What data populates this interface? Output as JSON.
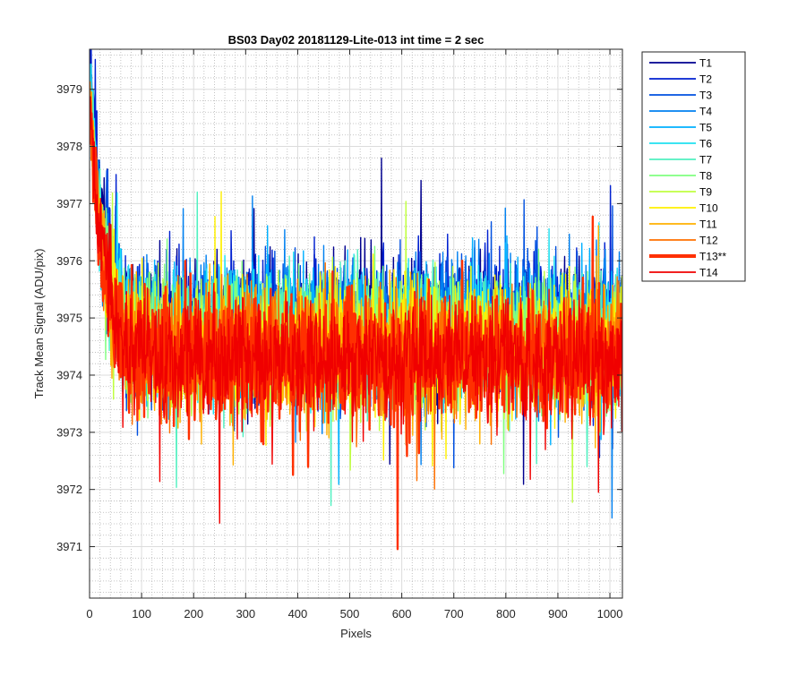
{
  "chart_data": {
    "type": "line",
    "title": "BS03 Day02 20181129-Lite-013 int time = 2 sec",
    "xlabel": "Pixels",
    "ylabel": "Track Mean Signal (ADU/pix)",
    "xlim": [
      0,
      1024
    ],
    "ylim": [
      3970.1,
      3979.7
    ],
    "xticks": [
      0,
      100,
      200,
      300,
      400,
      500,
      600,
      700,
      800,
      900,
      1000
    ],
    "yticks": [
      3971,
      3972,
      3973,
      3974,
      3975,
      3976,
      3977,
      3978,
      3979
    ],
    "grid": "major and minor",
    "legend_position": "outside-top-right",
    "series": [
      {
        "name": "T1",
        "color": "#00008F",
        "mean": 3974.9,
        "spread": 1.25,
        "start": 3979.6,
        "highlight": false
      },
      {
        "name": "T2",
        "color": "#0020D0",
        "mean": 3974.9,
        "spread": 1.25,
        "start": 3979.4,
        "highlight": false
      },
      {
        "name": "T3",
        "color": "#0050E0",
        "mean": 3974.8,
        "spread": 1.25,
        "start": 3979.2,
        "highlight": false
      },
      {
        "name": "T4",
        "color": "#0080F0",
        "mean": 3974.8,
        "spread": 1.25,
        "start": 3979.0,
        "highlight": false
      },
      {
        "name": "T5",
        "color": "#00B0FF",
        "mean": 3974.7,
        "spread": 1.2,
        "start": 3979.0,
        "highlight": false
      },
      {
        "name": "T6",
        "color": "#20E0F0",
        "mean": 3974.7,
        "spread": 1.2,
        "start": 3978.9,
        "highlight": false
      },
      {
        "name": "T7",
        "color": "#50F0C0",
        "mean": 3974.6,
        "spread": 1.2,
        "start": 3978.9,
        "highlight": false
      },
      {
        "name": "T8",
        "color": "#80FF80",
        "mean": 3974.6,
        "spread": 1.2,
        "start": 3978.8,
        "highlight": false
      },
      {
        "name": "T9",
        "color": "#C0FF40",
        "mean": 3974.5,
        "spread": 1.2,
        "start": 3978.8,
        "highlight": false
      },
      {
        "name": "T10",
        "color": "#FFF000",
        "mean": 3974.5,
        "spread": 1.2,
        "start": 3978.8,
        "highlight": false
      },
      {
        "name": "T11",
        "color": "#FFB000",
        "mean": 3974.4,
        "spread": 1.15,
        "start": 3978.7,
        "highlight": false
      },
      {
        "name": "T12",
        "color": "#FF7000",
        "mean": 3974.4,
        "spread": 1.15,
        "start": 3978.7,
        "highlight": false
      },
      {
        "name": "T13**",
        "color": "#FF3000",
        "mean": 3974.3,
        "spread": 1.15,
        "start": 3978.7,
        "highlight": true
      },
      {
        "name": "T14",
        "color": "#F00000",
        "mean": 3974.3,
        "spread": 1.15,
        "start": 3978.8,
        "highlight": false
      }
    ]
  }
}
